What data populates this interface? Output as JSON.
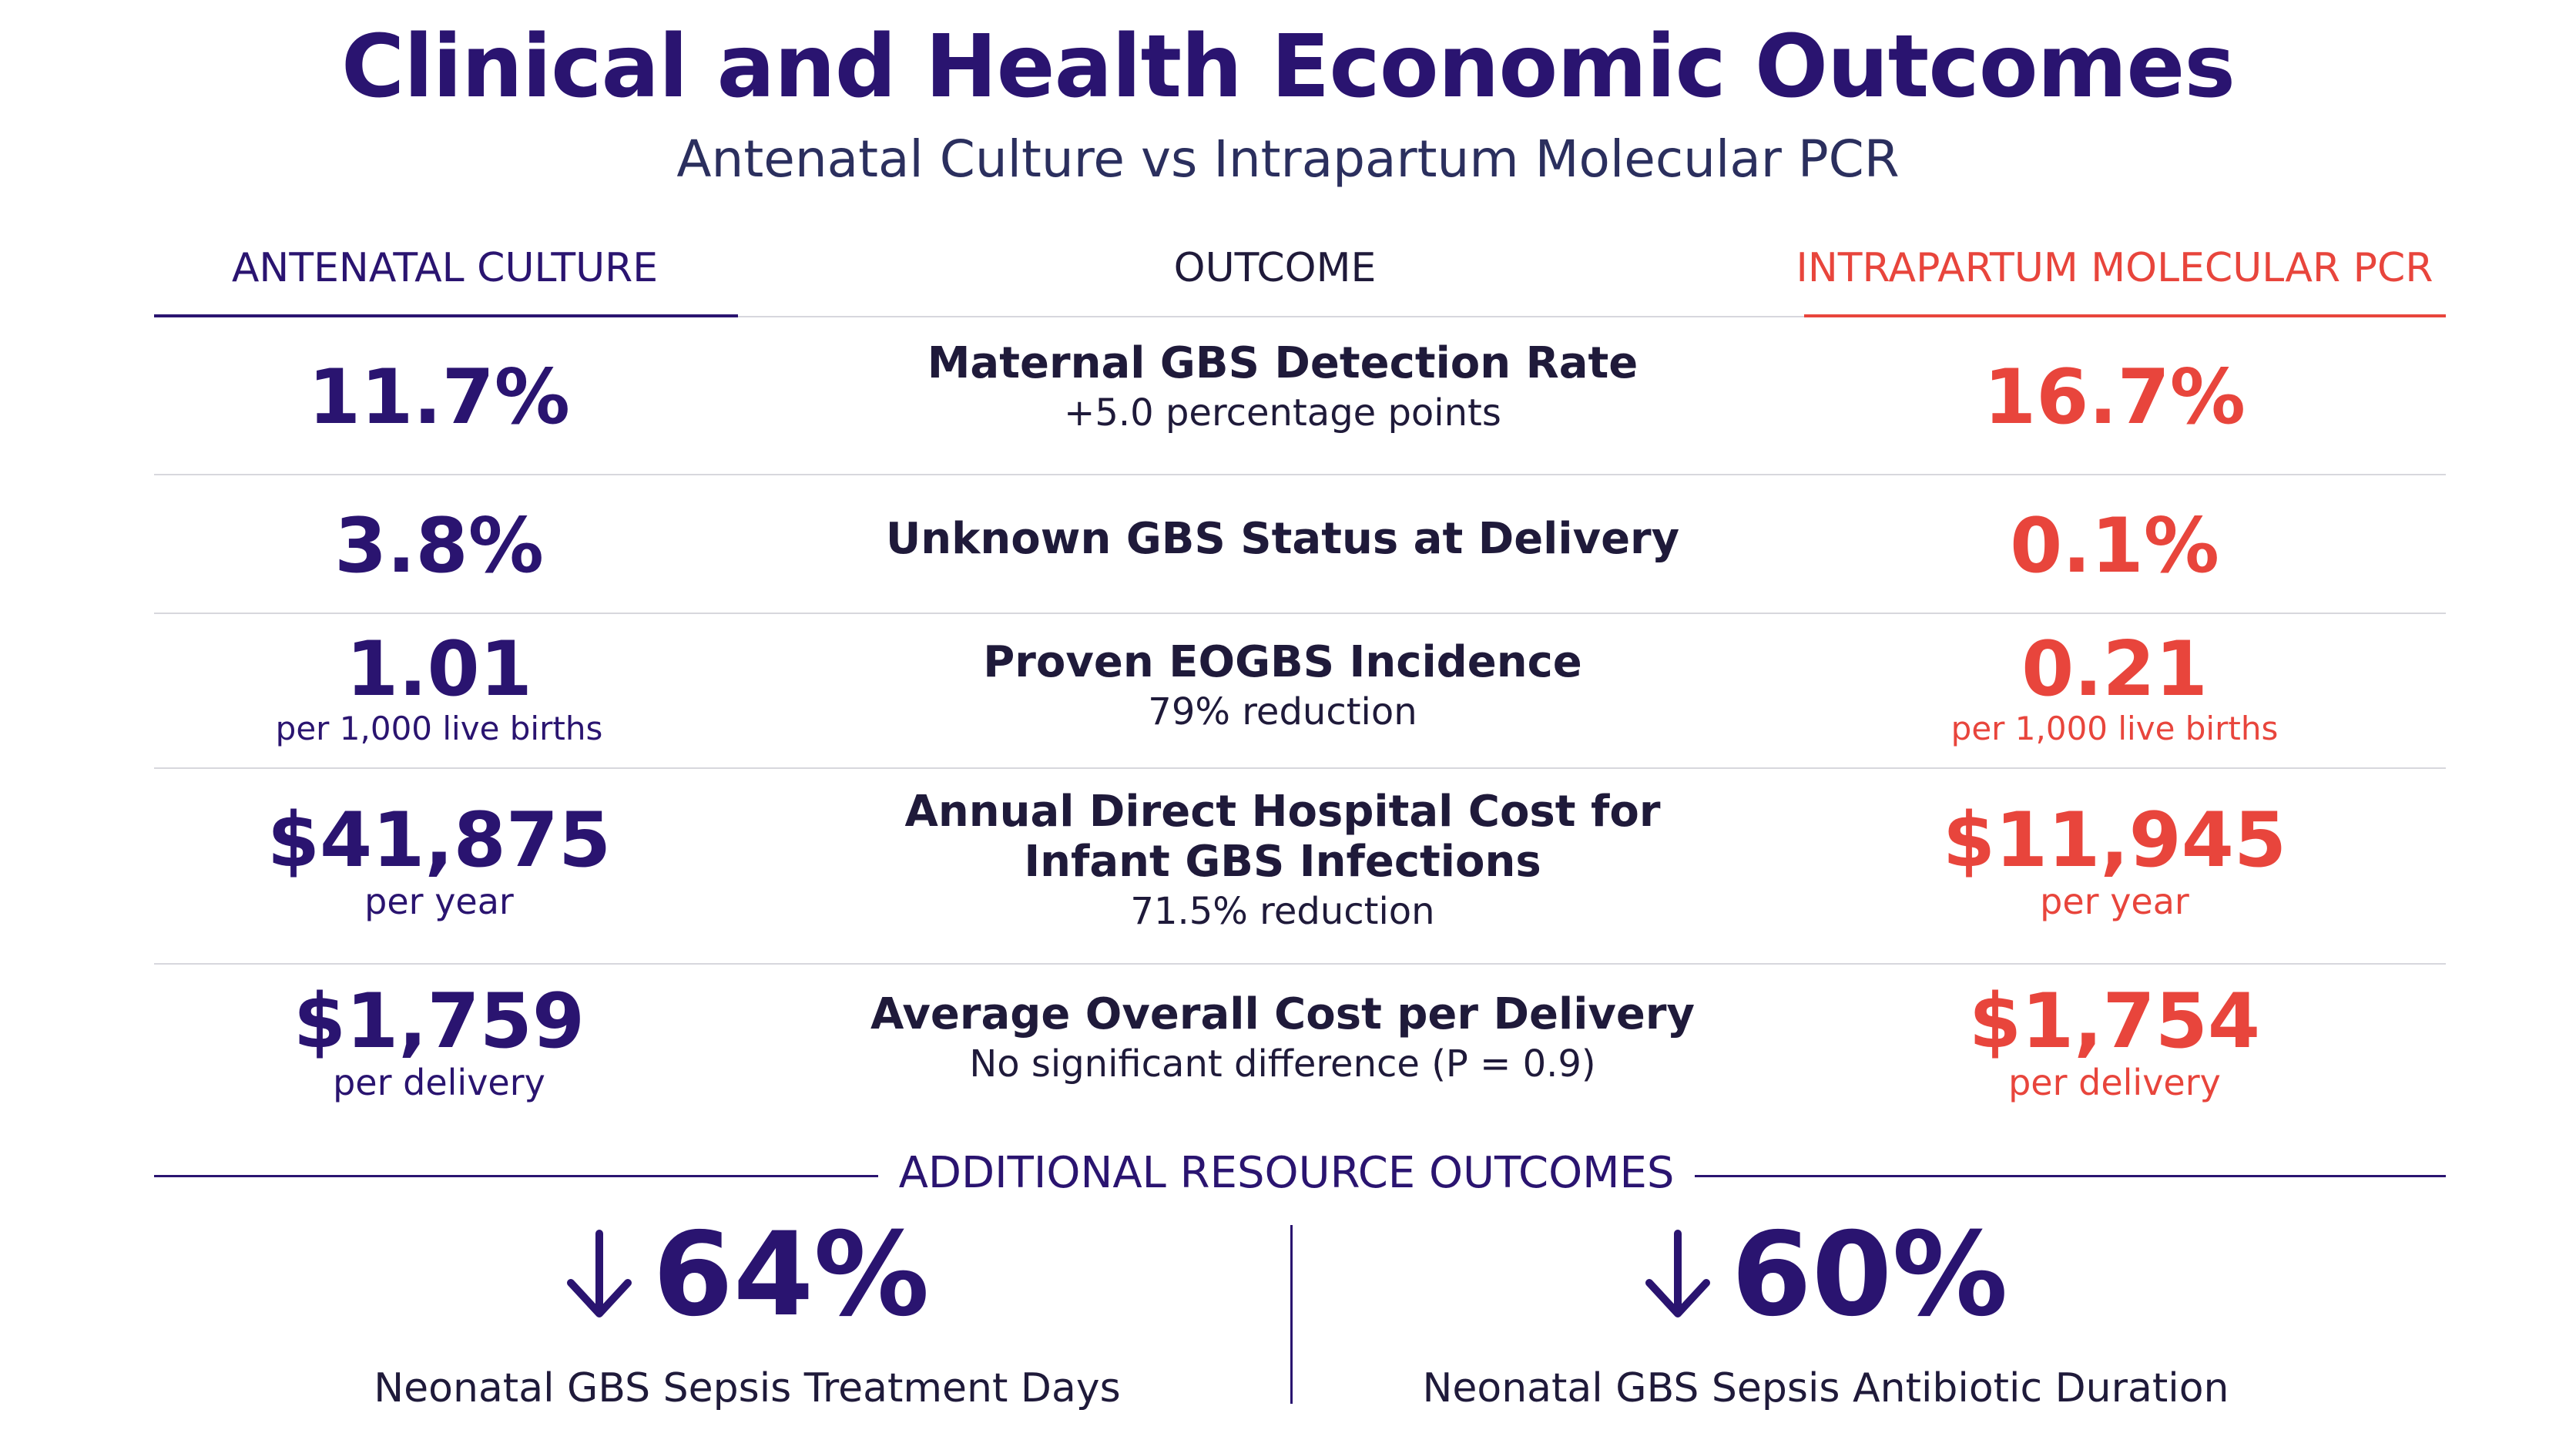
{
  "header": {
    "title": "Clinical and Health Economic Outcomes",
    "subtitle": "Antenatal Culture vs Intrapartum Molecular PCR"
  },
  "columns": {
    "left": "ANTENATAL CULTURE",
    "middle": "OUTCOME",
    "right": "INTRAPARTUM MOLECULAR PCR"
  },
  "rows": [
    {
      "left_value": "11.7%",
      "left_unit": "",
      "outcome": "Maternal GBS Detection Rate",
      "note": "+5.0 percentage points",
      "right_value": "16.7%",
      "right_unit": ""
    },
    {
      "left_value": "3.8%",
      "left_unit": "",
      "outcome": "Unknown GBS Status at Delivery",
      "note": "",
      "right_value": "0.1%",
      "right_unit": ""
    },
    {
      "left_value": "1.01",
      "left_unit": "per 1,000 live births",
      "outcome": "Proven EOGBS Incidence",
      "note": "79% reduction",
      "right_value": "0.21",
      "right_unit": "per 1,000 live births"
    },
    {
      "left_value": "$41,875",
      "left_unit": "per year",
      "outcome_line1": "Annual Direct Hospital Cost for",
      "outcome_line2": "Infant GBS Infections",
      "note": "71.5% reduction",
      "right_value": "$11,945",
      "right_unit": "per year"
    },
    {
      "left_value": "$1,759",
      "left_unit": "per delivery",
      "outcome": "Average Overall Cost per Delivery",
      "note": "No significant difference (P = 0.9)",
      "right_value": "$1,754",
      "right_unit": "per delivery"
    }
  ],
  "additional": {
    "heading": "ADDITIONAL RESOURCE OUTCOMES",
    "stats": [
      {
        "icon": "arrow-down-icon",
        "value": "64%",
        "label": "Neonatal GBS Sepsis Treatment Days"
      },
      {
        "icon": "arrow-down-icon",
        "value": "60%",
        "label": "Neonatal GBS Sepsis Antibiotic Duration"
      }
    ]
  },
  "colors": {
    "antenatal": "#2a1470",
    "pcr": "#e8453c",
    "text": "#1f1a3a"
  }
}
